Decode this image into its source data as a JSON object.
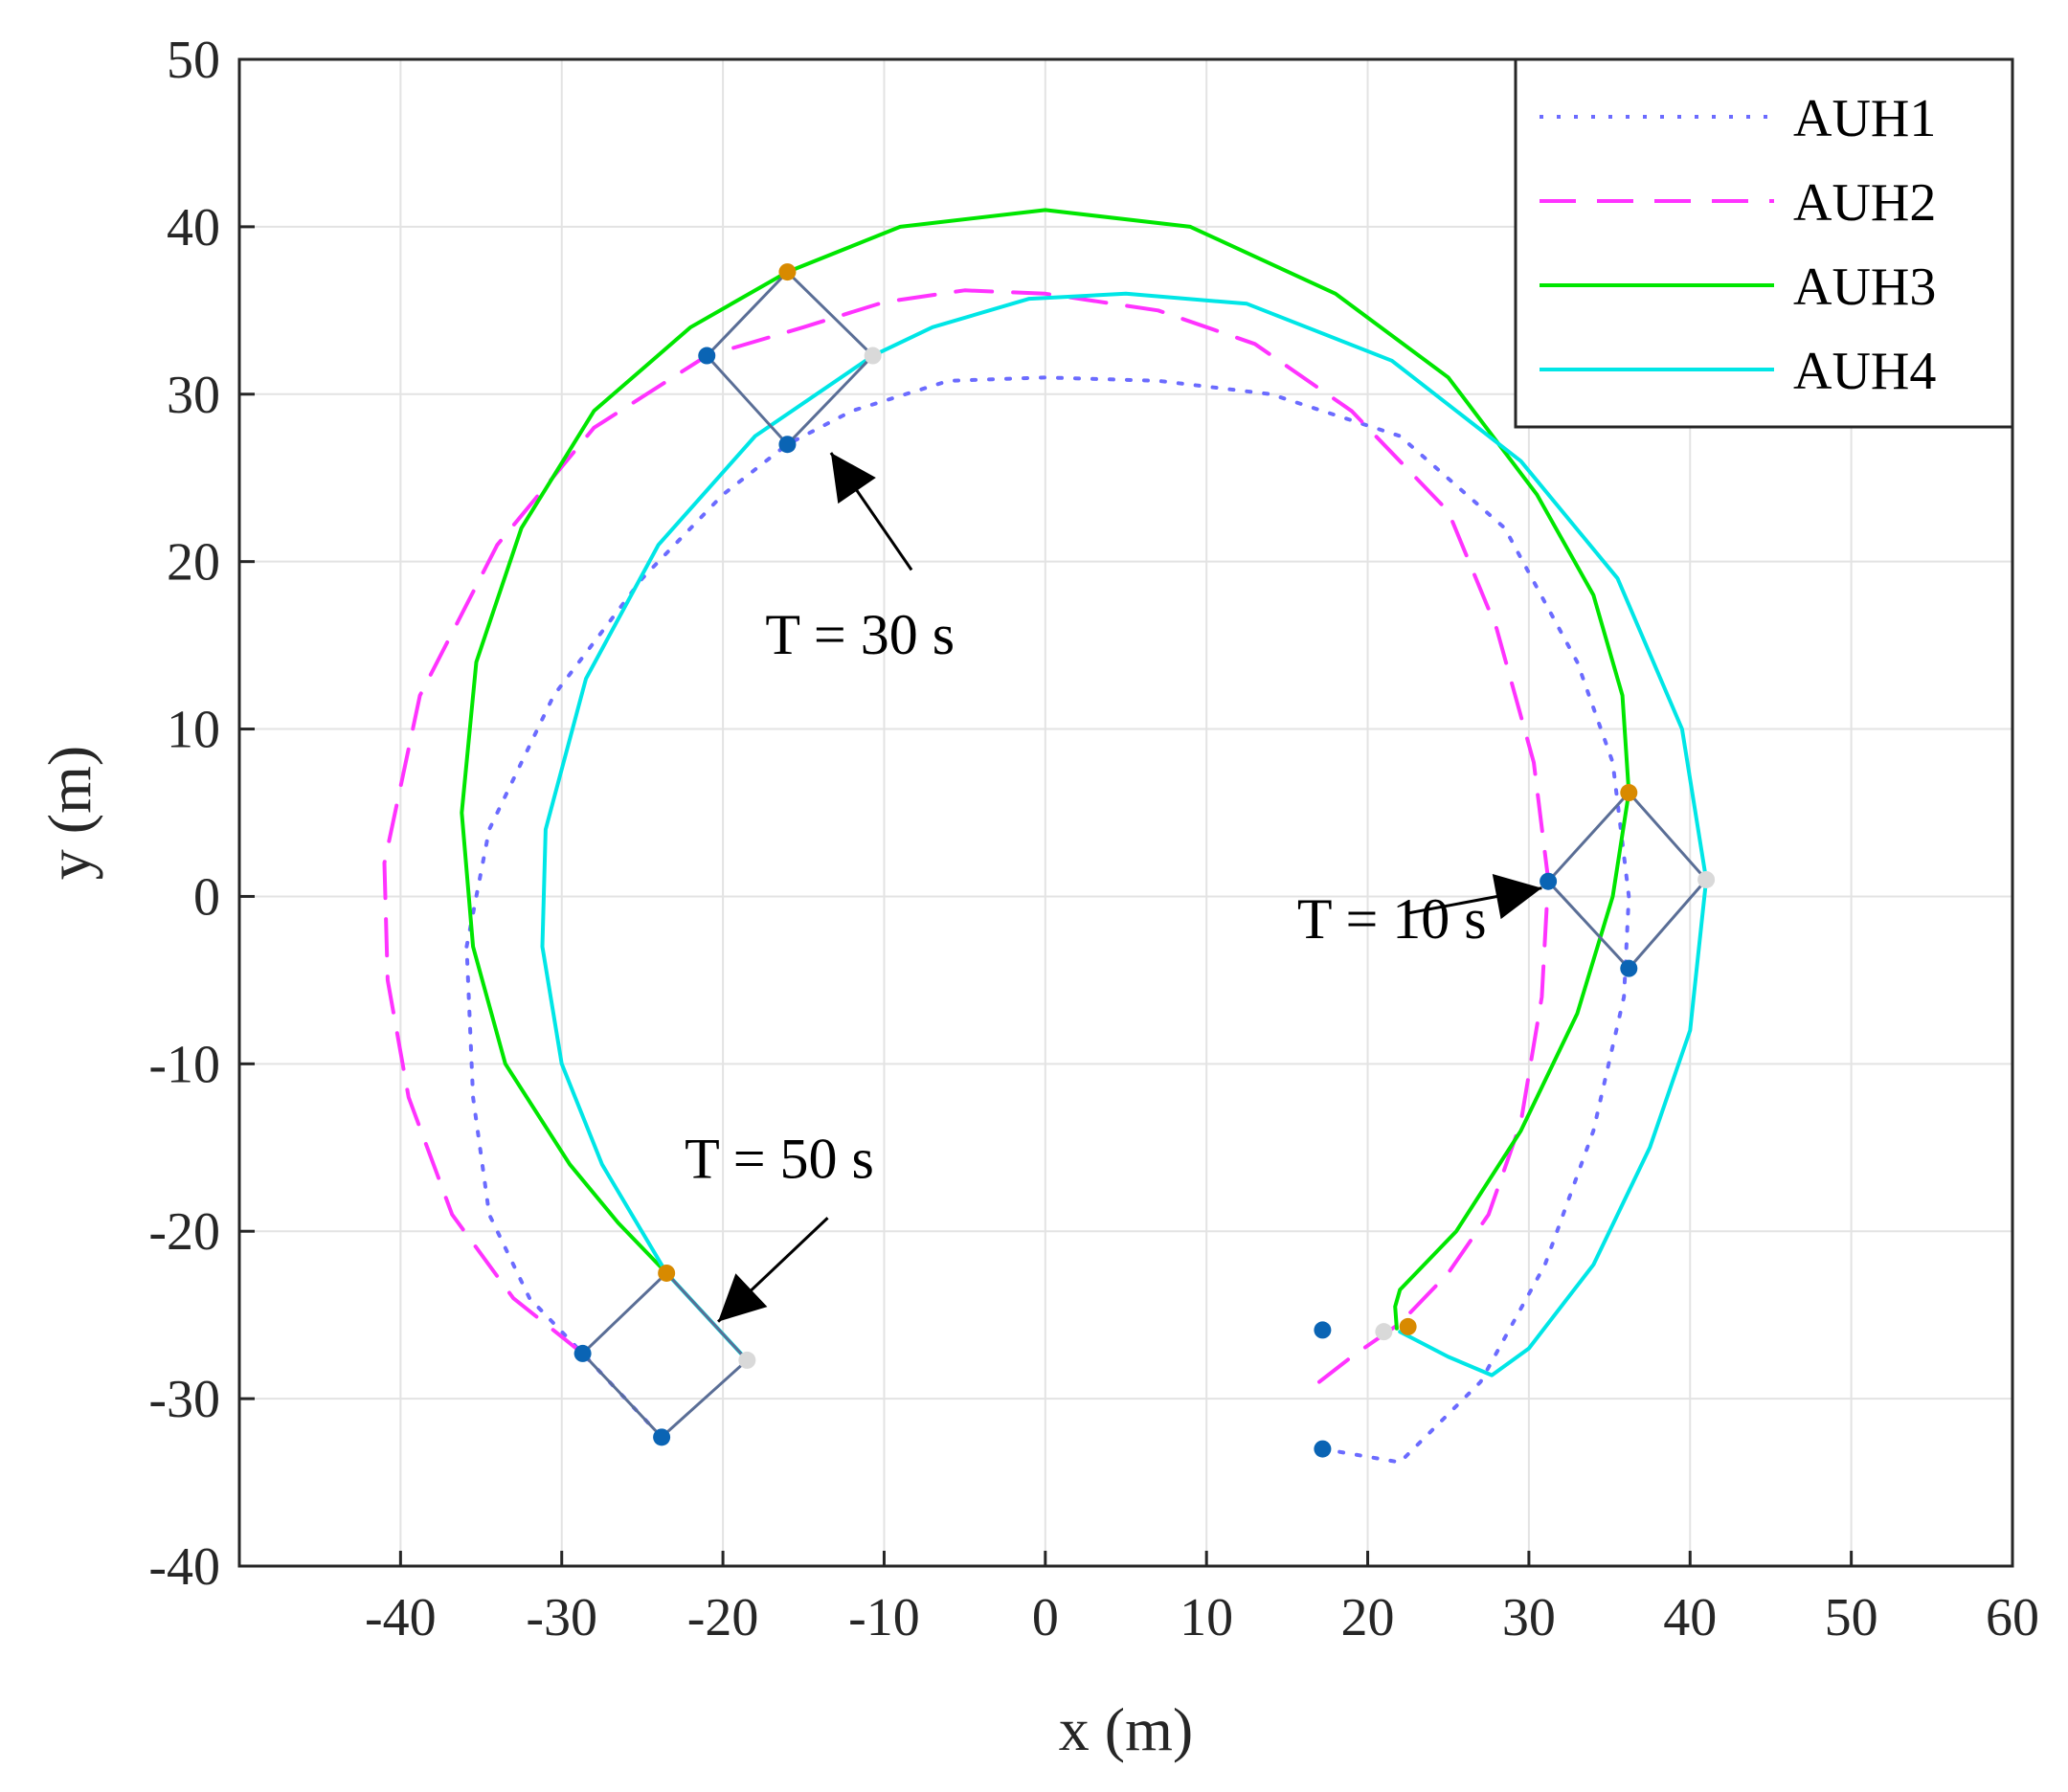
{
  "chart_data": {
    "type": "line",
    "title": "",
    "xlabel": "x (m)",
    "ylabel": "y (m)",
    "xlim": [
      -50,
      60
    ],
    "ylim": [
      -40,
      50
    ],
    "xticks": [
      -40,
      -30,
      -20,
      -10,
      0,
      10,
      20,
      30,
      40,
      50,
      60
    ],
    "yticks": [
      -40,
      -30,
      -20,
      -10,
      0,
      10,
      20,
      30,
      40,
      50
    ],
    "grid": true,
    "legend_position": "top-right",
    "series": [
      {
        "name": "AUH1",
        "style": "dotted",
        "color": "#6b6bff",
        "points": [
          [
            17.2,
            -33
          ],
          [
            22,
            -33.8
          ],
          [
            27,
            -29
          ],
          [
            31,
            -22
          ],
          [
            34,
            -14
          ],
          [
            35.9,
            -6
          ],
          [
            36.2,
            0
          ],
          [
            35.2,
            8
          ],
          [
            33,
            14
          ],
          [
            28.5,
            22
          ],
          [
            22,
            27.5
          ],
          [
            14,
            30
          ],
          [
            7,
            30.8
          ],
          [
            0,
            31
          ],
          [
            -6,
            30.8
          ],
          [
            -12,
            29
          ],
          [
            -16,
            27
          ],
          [
            -20,
            24
          ],
          [
            -25,
            19
          ],
          [
            -30.5,
            12
          ],
          [
            -34.5,
            4
          ],
          [
            -35.9,
            -3
          ],
          [
            -35.5,
            -12
          ],
          [
            -34.5,
            -19
          ],
          [
            -32,
            -24
          ],
          [
            -28.7,
            -27.3
          ],
          [
            -23.8,
            -32.3
          ]
        ]
      },
      {
        "name": "AUH2",
        "style": "dashed",
        "color": "#ff33ff",
        "points": [
          [
            17,
            -29
          ],
          [
            19,
            -27.5
          ],
          [
            22,
            -25.5
          ],
          [
            25,
            -22.5
          ],
          [
            27.5,
            -19
          ],
          [
            29.5,
            -13.5
          ],
          [
            30.8,
            -6
          ],
          [
            31.2,
            1
          ],
          [
            30.3,
            8
          ],
          [
            28,
            16
          ],
          [
            25,
            23
          ],
          [
            19,
            29
          ],
          [
            13,
            33
          ],
          [
            7,
            35
          ],
          [
            0,
            36
          ],
          [
            -5,
            36.2
          ],
          [
            -10,
            35.5
          ],
          [
            -15,
            34
          ],
          [
            -21,
            32.3
          ],
          [
            -28,
            28
          ],
          [
            -34,
            21
          ],
          [
            -38.8,
            12
          ],
          [
            -41,
            2
          ],
          [
            -40.8,
            -5
          ],
          [
            -39.5,
            -12
          ],
          [
            -36.8,
            -19
          ],
          [
            -33,
            -24
          ],
          [
            -28.7,
            -27.3
          ]
        ]
      },
      {
        "name": "AUH3",
        "style": "solid",
        "color": "#00e600",
        "points": [
          [
            21.8,
            -25.8
          ],
          [
            21.7,
            -24.5
          ],
          [
            22,
            -23.5
          ],
          [
            25.5,
            -20
          ],
          [
            29.5,
            -14
          ],
          [
            33,
            -7
          ],
          [
            35.2,
            0
          ],
          [
            36.2,
            6.2
          ],
          [
            35.8,
            12
          ],
          [
            34,
            18
          ],
          [
            30.5,
            24
          ],
          [
            25,
            31
          ],
          [
            18,
            36
          ],
          [
            9,
            40
          ],
          [
            0,
            41
          ],
          [
            -9,
            40
          ],
          [
            -16,
            37.3
          ],
          [
            -22,
            34
          ],
          [
            -28,
            29
          ],
          [
            -32.5,
            22
          ],
          [
            -35.3,
            14
          ],
          [
            -36.2,
            5
          ],
          [
            -35.5,
            -3
          ],
          [
            -33.5,
            -10
          ],
          [
            -29.5,
            -16
          ],
          [
            -26.5,
            -19.5
          ],
          [
            -23.5,
            -22.5
          ]
        ]
      },
      {
        "name": "AUH4",
        "style": "solid",
        "color": "#00e6e6",
        "points": [
          [
            22,
            -26
          ],
          [
            25,
            -27.5
          ],
          [
            27.7,
            -28.6
          ],
          [
            30,
            -27
          ],
          [
            34,
            -22
          ],
          [
            37.5,
            -15
          ],
          [
            40,
            -8
          ],
          [
            41,
            1
          ],
          [
            39.5,
            10
          ],
          [
            35.5,
            19
          ],
          [
            29.5,
            26
          ],
          [
            21.5,
            32
          ],
          [
            12.5,
            35.4
          ],
          [
            5,
            36
          ],
          [
            -1,
            35.7
          ],
          [
            -7,
            34
          ],
          [
            -10.7,
            32.3
          ],
          [
            -18,
            27.5
          ],
          [
            -24,
            21
          ],
          [
            -28.5,
            13
          ],
          [
            -31,
            4
          ],
          [
            -31.2,
            -3
          ],
          [
            -30,
            -10
          ],
          [
            -27.5,
            -16
          ],
          [
            -23.5,
            -22.5
          ],
          [
            -18.5,
            -27.7
          ]
        ]
      }
    ],
    "formations": [
      {
        "time_label": "T = 10 s",
        "nodes": [
          [
            36.2,
            6.2
          ],
          [
            41,
            1
          ],
          [
            36.2,
            -4.3
          ],
          [
            31.2,
            0.9
          ]
        ]
      },
      {
        "time_label": "T = 30 s",
        "nodes": [
          [
            -16,
            37.3
          ],
          [
            -10.7,
            32.3
          ],
          [
            -16,
            27
          ],
          [
            -21,
            32.3
          ]
        ]
      },
      {
        "time_label": "T = 50 s",
        "nodes": [
          [
            -23.5,
            -22.5
          ],
          [
            -18.5,
            -27.7
          ],
          [
            -23.8,
            -32.3
          ],
          [
            -28.7,
            -27.3
          ]
        ]
      }
    ],
    "initial_positions": [
      [
        17.2,
        -33
      ],
      [
        17.2,
        -25.9
      ],
      [
        22.5,
        -25.7
      ],
      [
        21,
        -26
      ]
    ],
    "annotations": [
      {
        "text": "T = 10 s",
        "x": 21.5,
        "y": -2.5,
        "arrow_from": [
          22.5,
          -1
        ],
        "arrow_to": [
          30.8,
          0.5
        ]
      },
      {
        "text": "T = 30 s",
        "x": -11.5,
        "y": 14.5,
        "arrow_from": [
          -8.3,
          19.5
        ],
        "arrow_to": [
          -13.3,
          26.5
        ]
      },
      {
        "text": "T = 50 s",
        "x": -16.5,
        "y": -16.8,
        "arrow_from": [
          -13.5,
          -19.2
        ],
        "arrow_to": [
          -20.3,
          -25.4
        ]
      }
    ]
  },
  "colors": {
    "formation_line": "#5a6e96",
    "node_orange": "#d88a00",
    "node_blue": "#0a64b4",
    "node_gray": "#d9d9d9",
    "grid": "#e3e3e3",
    "axis": "#262626"
  }
}
